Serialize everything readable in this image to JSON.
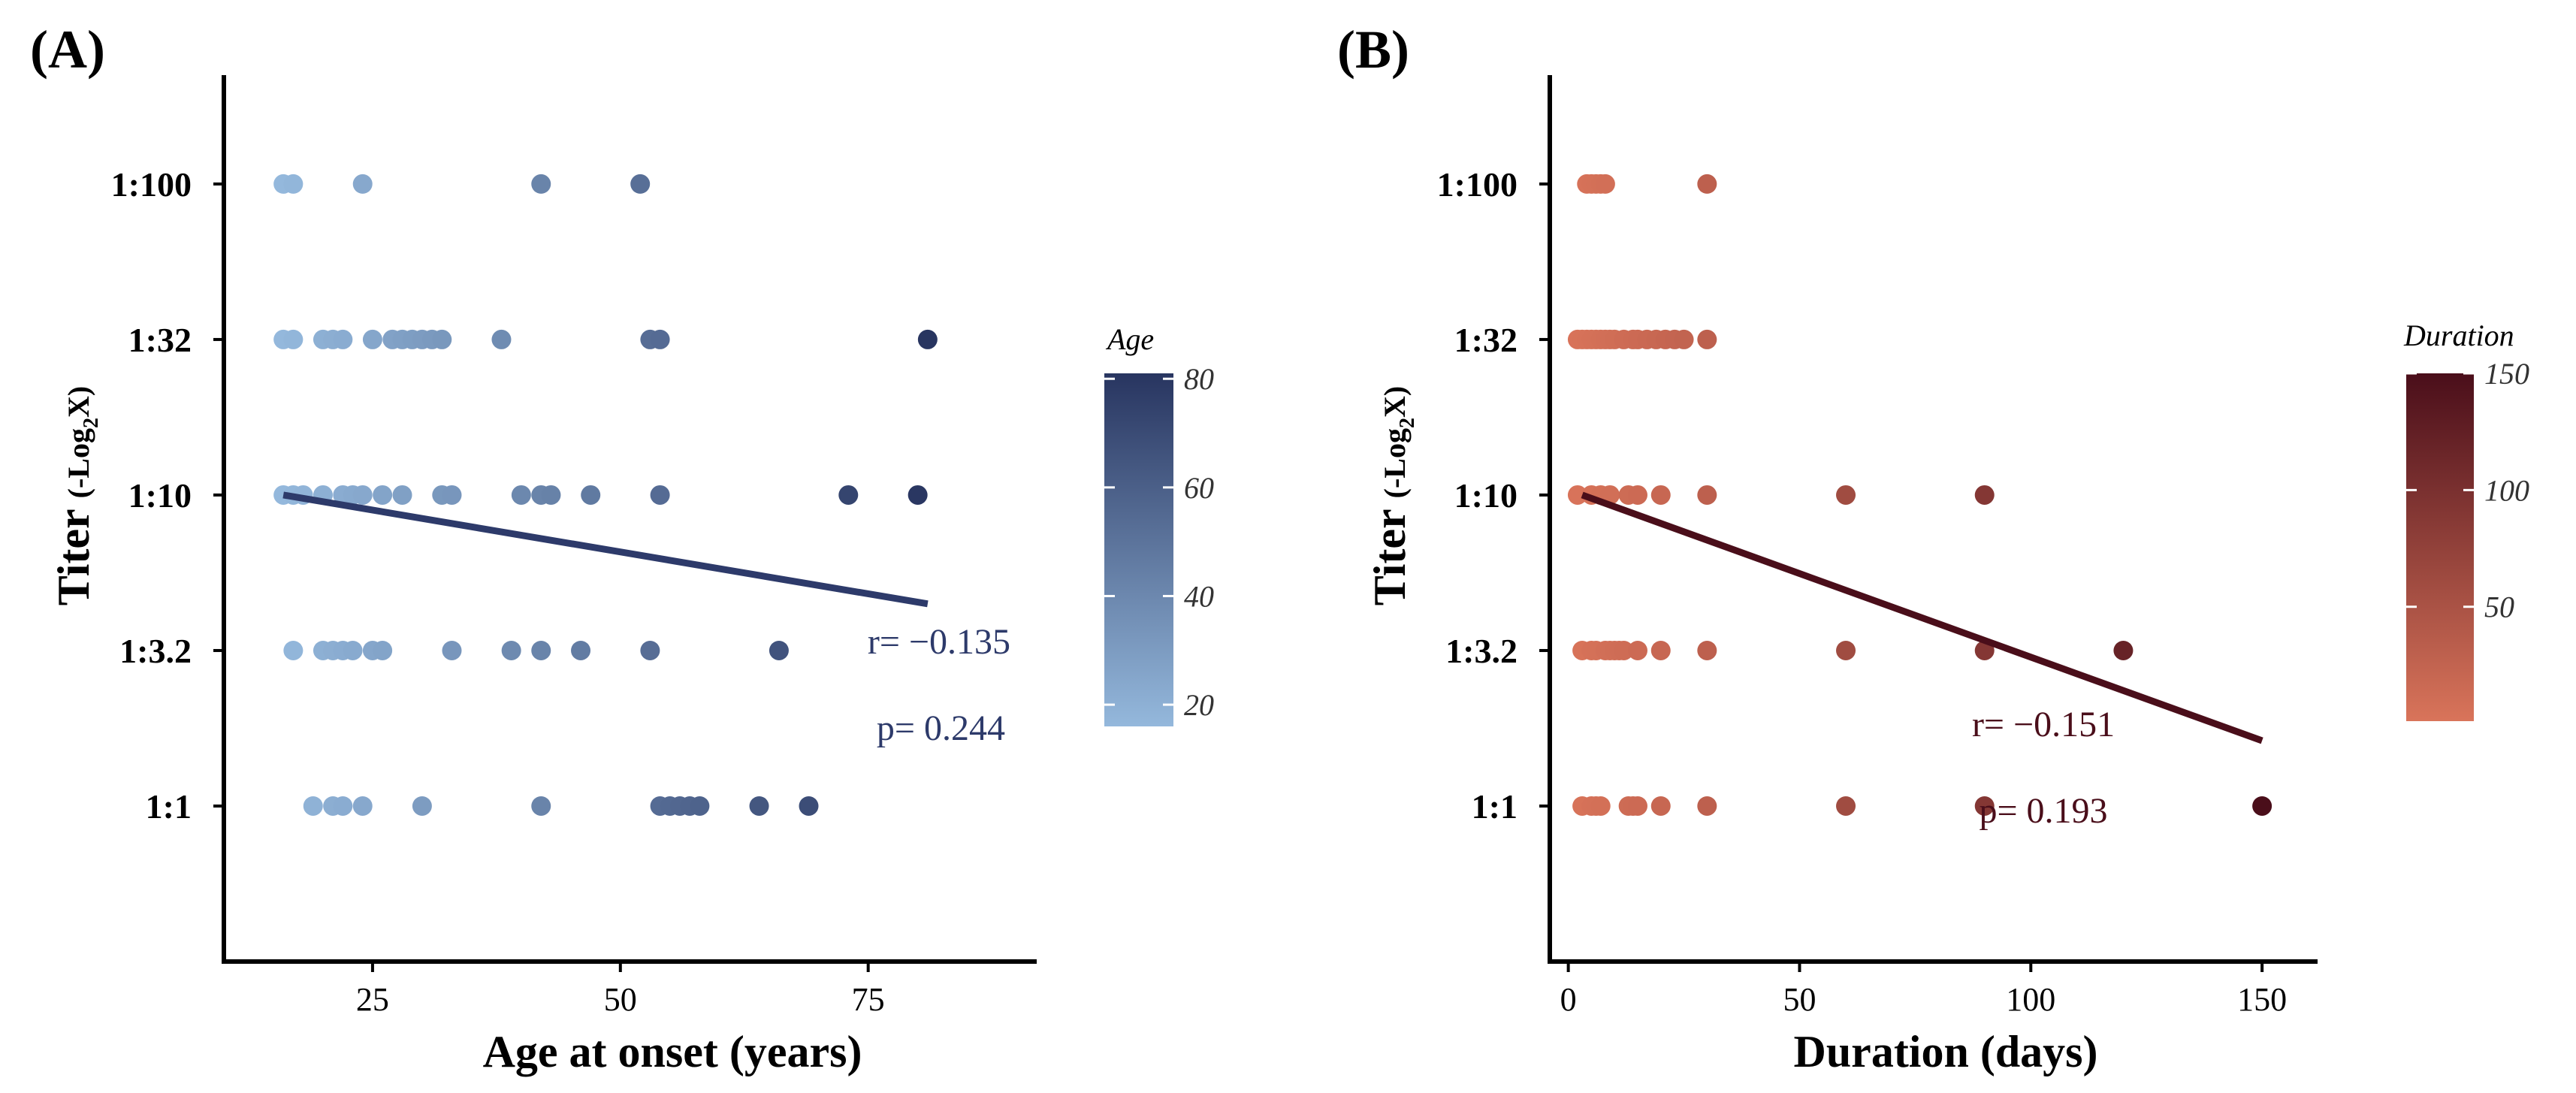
{
  "chart_data": [
    {
      "panel": "(A)",
      "type": "scatter",
      "xlabel": "Age at onset (years)",
      "ylabel": "Titer",
      "ylabel_unit": "(-Log",
      "ylabel_unit_sub": "2",
      "ylabel_unit_end": "X)",
      "xlim": [
        10,
        92
      ],
      "xticks": [
        25,
        50,
        75
      ],
      "ylim": [
        -1.0,
        4.7
      ],
      "ytick_labels": [
        "1:1",
        "1:3.2",
        "1:10",
        "1:32",
        "1:100"
      ],
      "colorbar": {
        "title": "Age",
        "range": [
          16,
          81
        ],
        "ticks": [
          20,
          40,
          60,
          80
        ],
        "low_color": "#94b8dc",
        "high_color": "#283560"
      },
      "points": [
        {
          "x": 16,
          "y": 4
        },
        {
          "x": 17,
          "y": 4
        },
        {
          "x": 24,
          "y": 4
        },
        {
          "x": 42,
          "y": 4
        },
        {
          "x": 52,
          "y": 4
        },
        {
          "x": 16,
          "y": 3
        },
        {
          "x": 17,
          "y": 3
        },
        {
          "x": 20,
          "y": 3
        },
        {
          "x": 21,
          "y": 3
        },
        {
          "x": 22,
          "y": 3
        },
        {
          "x": 25,
          "y": 3
        },
        {
          "x": 27,
          "y": 3
        },
        {
          "x": 28,
          "y": 3
        },
        {
          "x": 29,
          "y": 3
        },
        {
          "x": 30,
          "y": 3
        },
        {
          "x": 31,
          "y": 3
        },
        {
          "x": 32,
          "y": 3
        },
        {
          "x": 38,
          "y": 3
        },
        {
          "x": 53,
          "y": 3
        },
        {
          "x": 54,
          "y": 3
        },
        {
          "x": 81,
          "y": 3
        },
        {
          "x": 16,
          "y": 2
        },
        {
          "x": 17,
          "y": 2
        },
        {
          "x": 18,
          "y": 2
        },
        {
          "x": 20,
          "y": 2
        },
        {
          "x": 22,
          "y": 2
        },
        {
          "x": 23,
          "y": 2
        },
        {
          "x": 24,
          "y": 2
        },
        {
          "x": 26,
          "y": 2
        },
        {
          "x": 28,
          "y": 2
        },
        {
          "x": 32,
          "y": 2
        },
        {
          "x": 33,
          "y": 2
        },
        {
          "x": 40,
          "y": 2
        },
        {
          "x": 42,
          "y": 2
        },
        {
          "x": 43,
          "y": 2
        },
        {
          "x": 47,
          "y": 2
        },
        {
          "x": 54,
          "y": 2
        },
        {
          "x": 73,
          "y": 2
        },
        {
          "x": 80,
          "y": 2
        },
        {
          "x": 17,
          "y": 1
        },
        {
          "x": 20,
          "y": 1
        },
        {
          "x": 21,
          "y": 1
        },
        {
          "x": 22,
          "y": 1
        },
        {
          "x": 23,
          "y": 1
        },
        {
          "x": 25,
          "y": 1
        },
        {
          "x": 26,
          "y": 1
        },
        {
          "x": 33,
          "y": 1
        },
        {
          "x": 39,
          "y": 1
        },
        {
          "x": 42,
          "y": 1
        },
        {
          "x": 46,
          "y": 1
        },
        {
          "x": 53,
          "y": 1
        },
        {
          "x": 66,
          "y": 1
        },
        {
          "x": 19,
          "y": 0
        },
        {
          "x": 21,
          "y": 0
        },
        {
          "x": 22,
          "y": 0
        },
        {
          "x": 24,
          "y": 0
        },
        {
          "x": 30,
          "y": 0
        },
        {
          "x": 42,
          "y": 0
        },
        {
          "x": 54,
          "y": 0
        },
        {
          "x": 55,
          "y": 0
        },
        {
          "x": 56,
          "y": 0
        },
        {
          "x": 57,
          "y": 0
        },
        {
          "x": 58,
          "y": 0
        },
        {
          "x": 64,
          "y": 0
        },
        {
          "x": 69,
          "y": 0
        }
      ],
      "fit_line": {
        "x": [
          16,
          81
        ],
        "y": [
          2.0,
          1.3
        ],
        "color": "#2d3a6a"
      },
      "stat_color": "#2d3a6a",
      "r_text": "r= −0.135",
      "p_text": "p= 0.244"
    },
    {
      "panel": "(B)",
      "type": "scatter",
      "xlabel": "Duration  (days)",
      "ylabel": "Titer",
      "ylabel_unit": "(-Log",
      "ylabel_unit_sub": "2",
      "ylabel_unit_end": "X)",
      "xlim": [
        -4,
        162
      ],
      "xticks": [
        0,
        50,
        100,
        150
      ],
      "ylim": [
        -1.0,
        4.7
      ],
      "ytick_labels": [
        "1:1",
        "1:3.2",
        "1:10",
        "1:32",
        "1:100"
      ],
      "colorbar": {
        "title": "Duration",
        "range": [
          1,
          150
        ],
        "ticks": [
          50,
          100,
          150
        ],
        "low_color": "#d9745a",
        "high_color": "#4a0e1a"
      },
      "points": [
        {
          "x": 4,
          "y": 4
        },
        {
          "x": 5,
          "y": 4
        },
        {
          "x": 6,
          "y": 4
        },
        {
          "x": 7,
          "y": 4
        },
        {
          "x": 8,
          "y": 4
        },
        {
          "x": 30,
          "y": 4
        },
        {
          "x": 2,
          "y": 3
        },
        {
          "x": 3,
          "y": 3
        },
        {
          "x": 4,
          "y": 3
        },
        {
          "x": 5,
          "y": 3
        },
        {
          "x": 6,
          "y": 3
        },
        {
          "x": 7,
          "y": 3
        },
        {
          "x": 8,
          "y": 3
        },
        {
          "x": 9,
          "y": 3
        },
        {
          "x": 10,
          "y": 3
        },
        {
          "x": 12,
          "y": 3
        },
        {
          "x": 14,
          "y": 3
        },
        {
          "x": 15,
          "y": 3
        },
        {
          "x": 17,
          "y": 3
        },
        {
          "x": 19,
          "y": 3
        },
        {
          "x": 21,
          "y": 3
        },
        {
          "x": 23,
          "y": 3
        },
        {
          "x": 25,
          "y": 3
        },
        {
          "x": 30,
          "y": 3
        },
        {
          "x": 2,
          "y": 2
        },
        {
          "x": 5,
          "y": 2
        },
        {
          "x": 7,
          "y": 2
        },
        {
          "x": 9,
          "y": 2
        },
        {
          "x": 13,
          "y": 2
        },
        {
          "x": 15,
          "y": 2
        },
        {
          "x": 20,
          "y": 2
        },
        {
          "x": 30,
          "y": 2
        },
        {
          "x": 60,
          "y": 2
        },
        {
          "x": 90,
          "y": 2
        },
        {
          "x": 3,
          "y": 1
        },
        {
          "x": 5,
          "y": 1
        },
        {
          "x": 6,
          "y": 1
        },
        {
          "x": 8,
          "y": 1
        },
        {
          "x": 9,
          "y": 1
        },
        {
          "x": 10,
          "y": 1
        },
        {
          "x": 11,
          "y": 1
        },
        {
          "x": 12,
          "y": 1
        },
        {
          "x": 15,
          "y": 1
        },
        {
          "x": 20,
          "y": 1
        },
        {
          "x": 30,
          "y": 1
        },
        {
          "x": 60,
          "y": 1
        },
        {
          "x": 90,
          "y": 1
        },
        {
          "x": 120,
          "y": 1
        },
        {
          "x": 3,
          "y": 0
        },
        {
          "x": 5,
          "y": 0
        },
        {
          "x": 6,
          "y": 0
        },
        {
          "x": 7,
          "y": 0
        },
        {
          "x": 13,
          "y": 0
        },
        {
          "x": 14,
          "y": 0
        },
        {
          "x": 15,
          "y": 0
        },
        {
          "x": 20,
          "y": 0
        },
        {
          "x": 30,
          "y": 0
        },
        {
          "x": 60,
          "y": 0
        },
        {
          "x": 90,
          "y": 0
        },
        {
          "x": 150,
          "y": 0
        }
      ],
      "fit_line": {
        "x": [
          3,
          150
        ],
        "y": [
          2.0,
          0.42
        ],
        "color": "#4a0e1a"
      },
      "stat_color": "#4a0e1a",
      "r_text": "r= −0.151",
      "p_text": "p= 0.193"
    }
  ]
}
